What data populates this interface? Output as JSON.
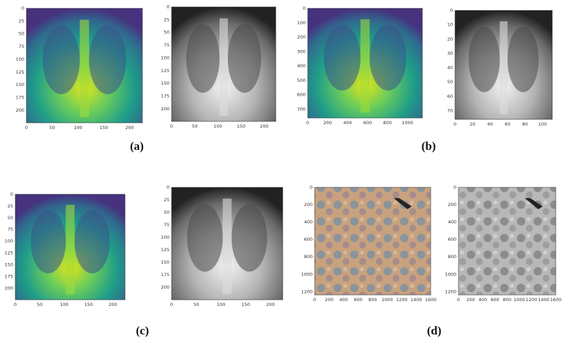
{
  "panels": [
    {
      "xticks": [
        "0",
        "50",
        "100",
        "150",
        "200"
      ],
      "yticks": [
        "0",
        "25",
        "50",
        "75",
        "100",
        "125",
        "150",
        "175",
        "200"
      ]
    },
    {
      "xticks": [
        "0",
        "50",
        "100",
        "150",
        "200"
      ],
      "yticks": [
        "0",
        "25",
        "50",
        "75",
        "100",
        "125",
        "150",
        "175",
        "200"
      ]
    },
    {
      "xticks": [
        "0",
        "200",
        "400",
        "600",
        "800",
        "1000"
      ],
      "yticks": [
        "0",
        "100",
        "200",
        "300",
        "400",
        "500",
        "600",
        "700"
      ]
    },
    {
      "xticks": [
        "0",
        "20",
        "40",
        "60",
        "80",
        "100"
      ],
      "yticks": [
        "0",
        "10",
        "20",
        "30",
        "40",
        "50",
        "60",
        "70"
      ]
    },
    {
      "xticks": [
        "0",
        "50",
        "100",
        "150",
        "200"
      ],
      "yticks": [
        "0",
        "25",
        "50",
        "75",
        "100",
        "125",
        "150",
        "175",
        "200"
      ]
    },
    {
      "xticks": [
        "0",
        "50",
        "100",
        "150",
        "200"
      ],
      "yticks": [
        "0",
        "25",
        "50",
        "75",
        "100",
        "125",
        "150",
        "175",
        "200"
      ]
    },
    {
      "xticks": [
        "0",
        "200",
        "400",
        "600",
        "800",
        "1000",
        "1200",
        "1400",
        "1600"
      ],
      "yticks": [
        "0",
        "200",
        "400",
        "600",
        "800",
        "1000",
        "1200"
      ]
    },
    {
      "xticks": [
        "0",
        "200",
        "400",
        "600",
        "800",
        "1000",
        "1200",
        "1400",
        "1600"
      ],
      "yticks": [
        "0",
        "200",
        "400",
        "600",
        "800",
        "1000",
        "1200"
      ]
    }
  ],
  "captions": [
    "(a)",
    "(b)",
    "(c)",
    "(d)"
  ]
}
